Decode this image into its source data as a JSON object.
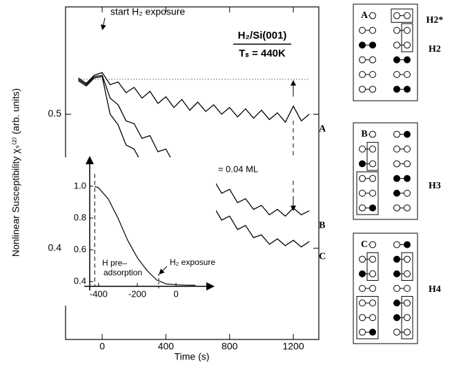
{
  "chart_data": {
    "type": "line",
    "title": "H₂/Si(001)",
    "subtitle": "Tₛ = 440K",
    "x_label": "Time (s)",
    "y_label": "Nonlinear Susceptibility χₛ⁽²⁾ (arb. units)",
    "x": [
      -150,
      -100,
      -50,
      0,
      50,
      100,
      150,
      200,
      250,
      300,
      350,
      400,
      450,
      500,
      550,
      600,
      650,
      700,
      750,
      800,
      850,
      900,
      950,
      1000,
      1050,
      1100,
      1150,
      1200,
      1250,
      1300
    ],
    "series": [
      {
        "name": "A",
        "color": "#000000",
        "values": [
          0.527,
          0.523,
          0.529,
          0.531,
          0.522,
          0.524,
          0.516,
          0.52,
          0.512,
          0.517,
          0.508,
          0.513,
          0.505,
          0.511,
          0.503,
          0.509,
          0.502,
          0.507,
          0.5,
          0.505,
          0.498,
          0.504,
          0.497,
          0.503,
          0.496,
          0.501,
          0.494,
          0.506,
          0.495,
          0.5
        ]
      },
      {
        "name": "B",
        "color": "#000000",
        "values": [
          0.526,
          0.522,
          0.528,
          0.529,
          0.512,
          0.507,
          0.495,
          0.493,
          0.482,
          0.484,
          0.472,
          0.474,
          0.463,
          0.466,
          0.456,
          0.459,
          0.448,
          0.451,
          0.441,
          0.444,
          0.434,
          0.437,
          0.429,
          0.432,
          0.425,
          0.429,
          0.424,
          0.43,
          0.425,
          0.428
        ]
      },
      {
        "name": "C",
        "color": "#000000",
        "values": [
          0.525,
          0.521,
          0.527,
          0.528,
          0.5,
          0.492,
          0.477,
          0.474,
          0.463,
          0.465,
          0.453,
          0.455,
          0.444,
          0.446,
          0.436,
          0.439,
          0.429,
          0.431,
          0.421,
          0.424,
          0.414,
          0.417,
          0.408,
          0.41,
          0.403,
          0.407,
          0.402,
          0.406,
          0.401,
          0.405
        ]
      }
    ],
    "reference_level": 0.526,
    "xlim": [
      -230,
      1360
    ],
    "ylim": [
      0.332,
      0.58
    ],
    "xticks": [
      0,
      400,
      800,
      1200
    ],
    "yticks": [
      0.4,
      0.5
    ],
    "annotations": [
      "start H₂ exposure",
      "ΔΘ = 0.04 ML"
    ],
    "inset": {
      "type": "line",
      "x": [
        -420,
        -400,
        -350,
        -300,
        -250,
        -200,
        -150,
        -100,
        -50,
        0,
        50,
        100
      ],
      "values": [
        1.0,
        0.99,
        0.92,
        0.8,
        0.66,
        0.55,
        0.47,
        0.41,
        0.385,
        0.38,
        0.378,
        0.377
      ],
      "xlim": [
        -446,
        178
      ],
      "ylim": [
        0.37,
        1.165
      ],
      "xticks": [
        -400,
        -200,
        0
      ],
      "yticks": [
        0.4,
        0.6,
        0.8,
        {
          "value": 1.0,
          "label": "1.0"
        }
      ],
      "annotations": [
        "H pre–",
        "adsorption",
        "H₂ exposure"
      ]
    }
  },
  "structure_panels": [
    {
      "label": "A",
      "tags": [
        "H2*",
        "H2"
      ]
    },
    {
      "label": "B",
      "tags": [
        "H3"
      ]
    },
    {
      "label": "C",
      "tags": [
        "H4"
      ]
    }
  ]
}
